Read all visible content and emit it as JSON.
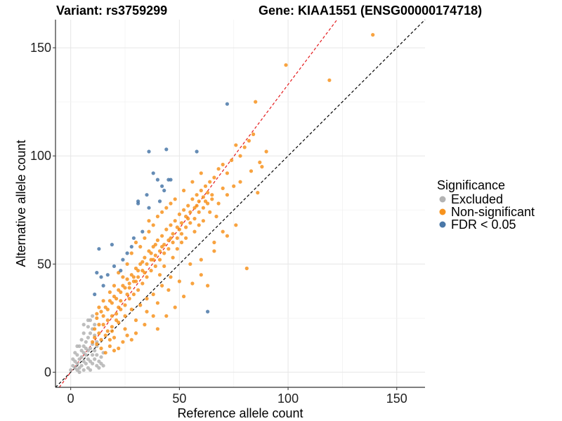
{
  "chart_data": {
    "type": "scatter",
    "title_left": "Variant: rs3759299",
    "title_right": "Gene: KIAA1551 (ENSG00000174718)",
    "xlabel": "Reference allele count",
    "ylabel": "Alternative allele count",
    "xlim": [
      -7,
      163
    ],
    "ylim": [
      -7,
      163
    ],
    "x_ticks": [
      0,
      50,
      100,
      150
    ],
    "y_ticks": [
      0,
      50,
      100,
      150
    ],
    "grid": true,
    "legend": {
      "title": "Significance",
      "position": "right",
      "entries": [
        {
          "name": "Excluded",
          "color": "#b3b3b3"
        },
        {
          "name": "Non-significant",
          "color": "#f7931e"
        },
        {
          "name": "FDR < 0.05",
          "color": "#4a78a8"
        }
      ]
    },
    "reference_lines": [
      {
        "name": "identity",
        "color": "#000000",
        "style": "dashed",
        "intercept": 0,
        "slope": 1.0
      },
      {
        "name": "fit",
        "color": "#e41a1c",
        "style": "dashed",
        "intercept": 0,
        "slope": 1.33
      }
    ],
    "series": [
      {
        "name": "Excluded",
        "color": "#b3b3b3",
        "points": [
          [
            0,
            1
          ],
          [
            1,
            3
          ],
          [
            2,
            5
          ],
          [
            2,
            2
          ],
          [
            3,
            8
          ],
          [
            3,
            4
          ],
          [
            4,
            6
          ],
          [
            4,
            2
          ],
          [
            5,
            10
          ],
          [
            5,
            3
          ],
          [
            5,
            7
          ],
          [
            6,
            12
          ],
          [
            6,
            5
          ],
          [
            6,
            9
          ],
          [
            7,
            14
          ],
          [
            7,
            4
          ],
          [
            7,
            8
          ],
          [
            8,
            16
          ],
          [
            8,
            10
          ],
          [
            8,
            6
          ],
          [
            9,
            18
          ],
          [
            9,
            11
          ],
          [
            9,
            5
          ],
          [
            10,
            20
          ],
          [
            10,
            13
          ],
          [
            10,
            8
          ],
          [
            3,
            1
          ],
          [
            4,
            0
          ],
          [
            6,
            1
          ],
          [
            8,
            2
          ],
          [
            10,
            4
          ],
          [
            11,
            6
          ],
          [
            12,
            3
          ],
          [
            7,
            11
          ],
          [
            5,
            15
          ],
          [
            4,
            12
          ],
          [
            6,
            18
          ],
          [
            8,
            21
          ],
          [
            9,
            24
          ],
          [
            10,
            26
          ],
          [
            11,
            22
          ],
          [
            12,
            8
          ],
          [
            13,
            5
          ],
          [
            14,
            7
          ],
          [
            15,
            9
          ],
          [
            12,
            14
          ],
          [
            11,
            17
          ],
          [
            2,
            9
          ],
          [
            1,
            6
          ],
          [
            3,
            12
          ],
          [
            13,
            2
          ],
          [
            9,
            1
          ],
          [
            11,
            10
          ],
          [
            12,
            12
          ],
          [
            14,
            4
          ],
          [
            15,
            3
          ],
          [
            6,
            22
          ],
          [
            8,
            24
          ]
        ]
      },
      {
        "name": "Non-significant",
        "color": "#f7931e",
        "points": [
          [
            10,
            14
          ],
          [
            11,
            20
          ],
          [
            12,
            25
          ],
          [
            13,
            18
          ],
          [
            14,
            28
          ],
          [
            15,
            22
          ],
          [
            16,
            30
          ],
          [
            17,
            19
          ],
          [
            18,
            33
          ],
          [
            19,
            26
          ],
          [
            20,
            35
          ],
          [
            21,
            24
          ],
          [
            22,
            38
          ],
          [
            23,
            29
          ],
          [
            24,
            40
          ],
          [
            25,
            31
          ],
          [
            26,
            43
          ],
          [
            27,
            34
          ],
          [
            28,
            45
          ],
          [
            29,
            36
          ],
          [
            30,
            48
          ],
          [
            31,
            38
          ],
          [
            32,
            50
          ],
          [
            33,
            41
          ],
          [
            34,
            53
          ],
          [
            35,
            44
          ],
          [
            36,
            56
          ],
          [
            37,
            47
          ],
          [
            38,
            58
          ],
          [
            39,
            49
          ],
          [
            40,
            61
          ],
          [
            41,
            52
          ],
          [
            42,
            63
          ],
          [
            43,
            55
          ],
          [
            44,
            66
          ],
          [
            45,
            57
          ],
          [
            46,
            68
          ],
          [
            47,
            60
          ],
          [
            48,
            70
          ],
          [
            49,
            62
          ],
          [
            50,
            73
          ],
          [
            51,
            64
          ],
          [
            52,
            75
          ],
          [
            53,
            67
          ],
          [
            54,
            77
          ],
          [
            55,
            69
          ],
          [
            56,
            80
          ],
          [
            57,
            71
          ],
          [
            58,
            82
          ],
          [
            59,
            74
          ],
          [
            60,
            84
          ],
          [
            61,
            76
          ],
          [
            62,
            86
          ],
          [
            63,
            78
          ],
          [
            64,
            88
          ],
          [
            65,
            80
          ],
          [
            66,
            90
          ],
          [
            67,
            72
          ],
          [
            68,
            94
          ],
          [
            70,
            96
          ],
          [
            72,
            92
          ],
          [
            74,
            98
          ],
          [
            76,
            105
          ],
          [
            78,
            100
          ],
          [
            80,
            104
          ],
          [
            82,
            107
          ],
          [
            84,
            110
          ],
          [
            86,
            83
          ],
          [
            88,
            95
          ],
          [
            90,
            102
          ],
          [
            85,
            125
          ],
          [
            99,
            142
          ],
          [
            119,
            135
          ],
          [
            139,
            156
          ],
          [
            81,
            48
          ],
          [
            70,
            65
          ],
          [
            66,
            60
          ],
          [
            63,
            40
          ],
          [
            60,
            45
          ],
          [
            55,
            50
          ],
          [
            50,
            42
          ],
          [
            45,
            38
          ],
          [
            40,
            32
          ],
          [
            35,
            28
          ],
          [
            30,
            24
          ],
          [
            25,
            20
          ],
          [
            20,
            16
          ],
          [
            18,
            12
          ],
          [
            16,
            9
          ],
          [
            14,
            11
          ],
          [
            22,
            30
          ],
          [
            26,
            36
          ],
          [
            30,
            42
          ],
          [
            34,
            46
          ],
          [
            38,
            52
          ],
          [
            42,
            58
          ],
          [
            46,
            62
          ],
          [
            50,
            66
          ],
          [
            54,
            71
          ],
          [
            58,
            77
          ],
          [
            28,
            55
          ],
          [
            32,
            58
          ],
          [
            36,
            65
          ],
          [
            40,
            72
          ],
          [
            44,
            76
          ],
          [
            48,
            80
          ],
          [
            52,
            84
          ],
          [
            56,
            88
          ],
          [
            60,
            92
          ],
          [
            24,
            44
          ],
          [
            20,
            40
          ],
          [
            18,
            37
          ],
          [
            15,
            33
          ],
          [
            13,
            30
          ],
          [
            12,
            27
          ],
          [
            17,
            24
          ],
          [
            19,
            21
          ],
          [
            21,
            27
          ],
          [
            23,
            33
          ],
          [
            27,
            39
          ],
          [
            29,
            44
          ],
          [
            31,
            47
          ],
          [
            33,
            51
          ],
          [
            37,
            55
          ],
          [
            39,
            59
          ],
          [
            41,
            45
          ],
          [
            43,
            49
          ],
          [
            47,
            53
          ],
          [
            49,
            57
          ],
          [
            51,
            60
          ],
          [
            53,
            62
          ],
          [
            57,
            65
          ],
          [
            59,
            68
          ],
          [
            61,
            70
          ],
          [
            64,
            74
          ],
          [
            68,
            78
          ],
          [
            72,
            82
          ],
          [
            75,
            86
          ],
          [
            78,
            88
          ],
          [
            83,
            93
          ],
          [
            87,
            97
          ],
          [
            70,
            85
          ],
          [
            65,
            82
          ],
          [
            62,
            79
          ],
          [
            46,
            44
          ],
          [
            42,
            40
          ],
          [
            38,
            36
          ],
          [
            35,
            34
          ],
          [
            32,
            31
          ],
          [
            28,
            29
          ],
          [
            25,
            26
          ],
          [
            22,
            23
          ],
          [
            19,
            19
          ],
          [
            16,
            17
          ],
          [
            14,
            15
          ],
          [
            12,
            13
          ],
          [
            11,
            16
          ],
          [
            13,
            22
          ],
          [
            15,
            26
          ],
          [
            17,
            29
          ],
          [
            19,
            32
          ],
          [
            21,
            34
          ],
          [
            23,
            37
          ],
          [
            25,
            39
          ],
          [
            27,
            41
          ],
          [
            29,
            42
          ],
          [
            31,
            44
          ],
          [
            33,
            47
          ],
          [
            35,
            50
          ],
          [
            37,
            52
          ],
          [
            39,
            54
          ],
          [
            41,
            56
          ],
          [
            43,
            59
          ],
          [
            45,
            61
          ],
          [
            47,
            64
          ],
          [
            49,
            67
          ],
          [
            51,
            69
          ],
          [
            53,
            72
          ],
          [
            55,
            74
          ],
          [
            57,
            76
          ],
          [
            59,
            79
          ],
          [
            61,
            81
          ],
          [
            63,
            83
          ],
          [
            40,
            20
          ],
          [
            44,
            26
          ],
          [
            48,
            30
          ],
          [
            52,
            35
          ],
          [
            56,
            41
          ],
          [
            60,
            52
          ],
          [
            66,
            56
          ],
          [
            72,
            63
          ],
          [
            76,
            68
          ],
          [
            38,
            26
          ],
          [
            34,
            22
          ],
          [
            30,
            18
          ],
          [
            28,
            15
          ],
          [
            26,
            17
          ],
          [
            24,
            14
          ],
          [
            22,
            11
          ],
          [
            20,
            10
          ],
          [
            18,
            15
          ],
          [
            34,
            62
          ],
          [
            38,
            68
          ],
          [
            42,
            74
          ],
          [
            46,
            78
          ],
          [
            36,
            70
          ],
          [
            30,
            60
          ],
          [
            26,
            50
          ],
          [
            22,
            46
          ]
        ]
      },
      {
        "name": "FDR < 0.05",
        "color": "#4a78a8",
        "points": [
          [
            13,
            57
          ],
          [
            19,
            59
          ],
          [
            24,
            52
          ],
          [
            26,
            55
          ],
          [
            28,
            58
          ],
          [
            31,
            79
          ],
          [
            31,
            78
          ],
          [
            36,
            102
          ],
          [
            44,
            103
          ],
          [
            38,
            92
          ],
          [
            40,
            89
          ],
          [
            42,
            86
          ],
          [
            45,
            89
          ],
          [
            46,
            89
          ],
          [
            58,
            102
          ],
          [
            72,
            124
          ],
          [
            63,
            28
          ],
          [
            12,
            46
          ],
          [
            14,
            44
          ],
          [
            17,
            45
          ],
          [
            23,
            47
          ],
          [
            20,
            49
          ],
          [
            29,
            62
          ],
          [
            33,
            65
          ],
          [
            35,
            82
          ],
          [
            41,
            79
          ],
          [
            43,
            84
          ],
          [
            15,
            40
          ],
          [
            11,
            36
          ],
          [
            36,
            76
          ]
        ]
      }
    ]
  }
}
